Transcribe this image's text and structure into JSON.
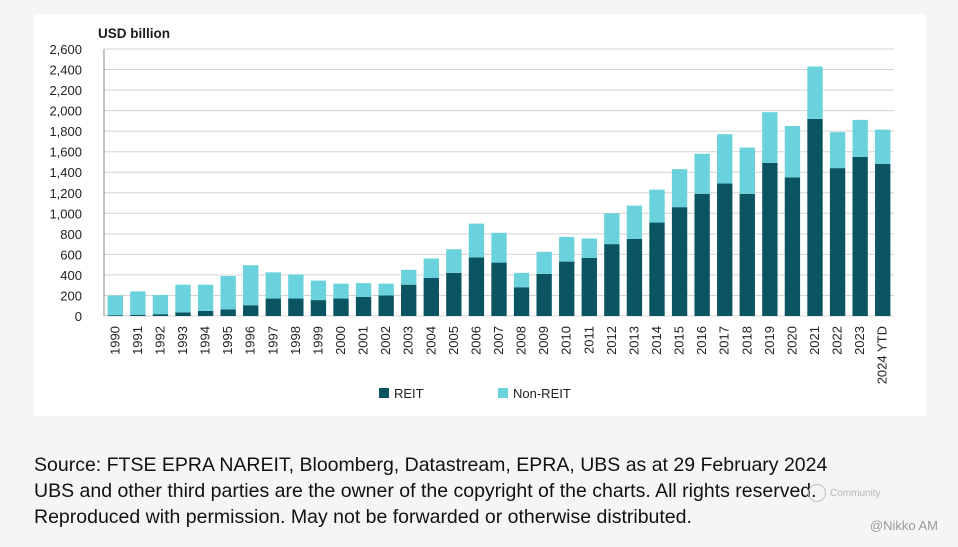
{
  "chart_data": {
    "type": "bar",
    "stacked": true,
    "ylabel": "USD billion",
    "ylim": [
      0,
      2600
    ],
    "yticks": [
      0,
      200,
      400,
      600,
      800,
      1000,
      1200,
      1400,
      1600,
      1800,
      2000,
      2200,
      2400,
      2600
    ],
    "ytick_labels": [
      "0",
      "200",
      "400",
      "600",
      "800",
      "1,000",
      "1,200",
      "1,400",
      "1,600",
      "1,800",
      "2,000",
      "2,200",
      "2,400",
      "2,600"
    ],
    "grid": true,
    "legend_position": "bottom",
    "categories": [
      "1990",
      "1991",
      "1992",
      "1993",
      "1994",
      "1995",
      "1996",
      "1997",
      "1998",
      "1999",
      "2000",
      "2001",
      "2002",
      "2003",
      "2004",
      "2005",
      "2006",
      "2007",
      "2008",
      "2009",
      "2010",
      "2011",
      "2012",
      "2013",
      "2014",
      "2015",
      "2016",
      "2017",
      "2018",
      "2019",
      "2020",
      "2021",
      "2022",
      "2023",
      "2024 YTD"
    ],
    "series": [
      {
        "name": "REIT",
        "color": "#0b5563",
        "values": [
          8,
          12,
          18,
          35,
          50,
          65,
          105,
          170,
          170,
          155,
          170,
          185,
          200,
          305,
          370,
          420,
          570,
          520,
          280,
          410,
          530,
          565,
          700,
          750,
          910,
          1060,
          1190,
          1290,
          1190,
          1490,
          1350,
          1920,
          1440,
          1550,
          1480
        ]
      },
      {
        "name": "Non-REIT",
        "color": "#6ad2dc",
        "values": [
          192,
          228,
          187,
          270,
          255,
          325,
          390,
          255,
          235,
          190,
          145,
          135,
          115,
          145,
          190,
          230,
          330,
          290,
          140,
          215,
          240,
          190,
          300,
          325,
          320,
          370,
          390,
          480,
          450,
          495,
          500,
          510,
          350,
          360,
          335
        ]
      }
    ]
  },
  "legend": {
    "items": [
      {
        "label": "REIT",
        "color": "#0b5563"
      },
      {
        "label": "Non-REIT",
        "color": "#6ad2dc"
      }
    ]
  },
  "footer": {
    "source_line1": "Source: FTSE EPRA NAREIT, Bloomberg, Datastream, EPRA, UBS as at 29 February 2024",
    "source_line2": "UBS and other third parties are the owner of the copyright of the charts. All rights reserved.",
    "source_line3": "Reproduced with permission. May not be forwarded or otherwise distributed."
  },
  "watermark": {
    "text": "@Nikko AM",
    "community": "Community"
  }
}
